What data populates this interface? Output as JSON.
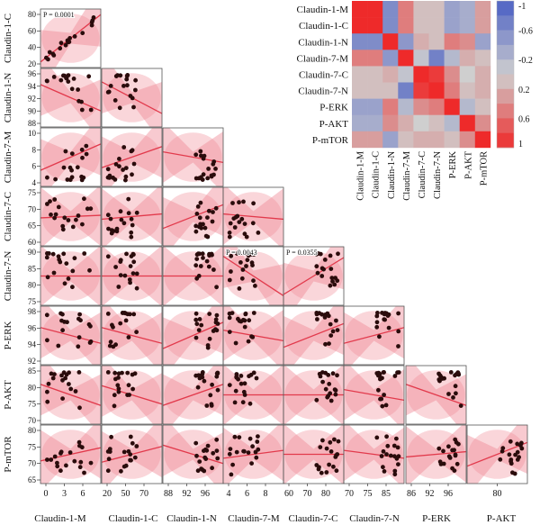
{
  "chart_data": [
    {
      "type": "scatter",
      "panel": "pairwise-scatter-matrix",
      "variables": [
        "Claudin-1-M",
        "Claudin-1-C",
        "Claudin-1-N",
        "Claudin-7-M",
        "Claudin-7-C",
        "Claudin-7-N",
        "P-ERK",
        "P-AKT",
        "P-mTOR"
      ],
      "row_variables": [
        "Claudin-1-C",
        "Claudin-1-N",
        "Claudin-7-M",
        "Claudin-7-C",
        "Claudin-7-N",
        "P-ERK",
        "P-AKT",
        "P-mTOR"
      ],
      "x_axis_ticks": {
        "Claudin-1-M": [
          "0",
          "3",
          "6"
        ],
        "Claudin-1-C": [
          "20",
          "50",
          "70"
        ],
        "Claudin-1-N": [
          "88",
          "92",
          "96"
        ],
        "Claudin-7-M": [
          "4",
          "6",
          "8"
        ],
        "Claudin-7-C": [
          "60",
          "70",
          "80"
        ],
        "Claudin-7-N": [
          "70",
          "75",
          "85"
        ],
        "P-ERK": [
          "86",
          "92",
          "96"
        ],
        "P-AKT": [
          "80"
        ]
      },
      "y_axis_ticks": {
        "Claudin-1-C": [
          "80",
          "60",
          "40",
          "20"
        ],
        "Claudin-1-N": [
          "96",
          "94",
          "92",
          "90",
          "88"
        ],
        "Claudin-7-M": [
          "10",
          "8",
          "6",
          "4"
        ],
        "Claudin-7-C": [
          "75",
          "70",
          "65",
          "60"
        ],
        "Claudin-7-N": [
          "90",
          "85",
          "80",
          "75"
        ],
        "P-ERK": [
          "98",
          "96",
          "94",
          "92"
        ],
        "P-AKT": [
          "85",
          "80",
          "75",
          "70"
        ],
        "P-mTOR": [
          "80",
          "75",
          "70",
          "65"
        ]
      },
      "annotations": [
        {
          "row": "Claudin-1-C",
          "col": "Claudin-1-M",
          "text": "P = 0.0001"
        },
        {
          "row": "Claudin-7-N",
          "col": "Claudin-7-M",
          "text": "P = 0.0043"
        },
        {
          "row": "Claudin-7-N",
          "col": "Claudin-7-C",
          "text": "P = 0.0355"
        }
      ],
      "grid": false,
      "legend": "none",
      "colors": {
        "point": "#2a0c0c",
        "band": "#f08a96",
        "line": "#e23a4c"
      }
    },
    {
      "type": "heatmap",
      "panel": "correlation-heatmap",
      "row_labels": [
        "Claudin-1-M",
        "Claudin-1-C",
        "Claudin-1-N",
        "Claudin-7-M",
        "Claudin-7-C",
        "Claudin-7-N",
        "P-ERK",
        "P-AKT",
        "P-mTOR"
      ],
      "col_labels": [
        "Claudin-1-M",
        "Claudin-1-C",
        "Claudin-1-N",
        "Claudin-7-M",
        "Claudin-7-C",
        "Claudin-7-N",
        "P-ERK",
        "P-AKT",
        "P-mTOR"
      ],
      "values": [
        [
          1.0,
          1.0,
          -0.6,
          0.5,
          0.1,
          0.1,
          -0.4,
          -0.3,
          0.3
        ],
        [
          1.0,
          1.0,
          -0.6,
          0.5,
          0.1,
          0.1,
          -0.4,
          -0.3,
          0.3
        ],
        [
          -0.6,
          -0.6,
          1.0,
          -0.5,
          0.2,
          0.1,
          0.5,
          0.4,
          -0.4
        ],
        [
          0.5,
          0.5,
          -0.5,
          1.0,
          -0.1,
          -0.7,
          -0.2,
          0.2,
          0.1
        ],
        [
          0.1,
          0.1,
          0.2,
          -0.1,
          1.0,
          0.9,
          0.4,
          0.0,
          0.2
        ],
        [
          0.1,
          0.1,
          0.1,
          -0.7,
          0.9,
          1.0,
          0.5,
          0.1,
          0.2
        ],
        [
          -0.4,
          -0.4,
          0.5,
          -0.2,
          0.4,
          0.5,
          1.0,
          -0.2,
          0.1
        ],
        [
          -0.3,
          -0.3,
          0.4,
          0.2,
          0.0,
          0.1,
          -0.2,
          1.0,
          0.4
        ],
        [
          0.3,
          0.3,
          -0.4,
          0.1,
          0.2,
          0.2,
          0.1,
          0.4,
          1.0
        ]
      ],
      "colorbar_ticks": [
        "-1",
        "-0.6",
        "-0.2",
        "0.2",
        "0.6",
        "1"
      ],
      "colorbar_range": [
        -1,
        1
      ],
      "colors": {
        "negative": "#4a5fc4",
        "neutral": "#cfcfcf",
        "positive": "#ee2a2a"
      }
    }
  ]
}
